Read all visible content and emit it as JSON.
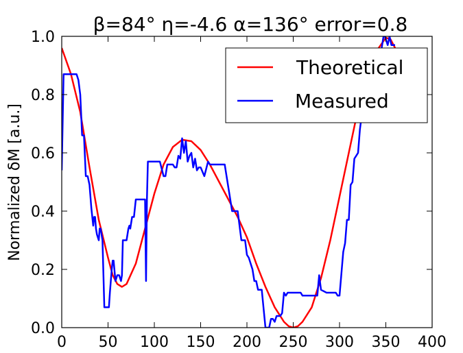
{
  "chart_data": {
    "type": "line",
    "title": "β=84° η=-4.6 α=136° error=0.8",
    "xlabel": "",
    "ylabel": "Normalized δM [a.u.]",
    "xlim": [
      0,
      400
    ],
    "ylim": [
      0.0,
      1.0
    ],
    "xticks": [
      "0",
      "50",
      "100",
      "150",
      "200",
      "250",
      "300",
      "350",
      "400"
    ],
    "yticks": [
      "0.0",
      "0.2",
      "0.4",
      "0.6",
      "0.8",
      "1.0"
    ],
    "legend_position": "top-right",
    "series": [
      {
        "name": "Theoretical",
        "color": "#ff0000",
        "x": [
          0,
          10,
          20,
          30,
          40,
          50,
          55,
          60,
          65,
          70,
          80,
          90,
          100,
          110,
          120,
          130,
          140,
          150,
          160,
          170,
          180,
          190,
          200,
          210,
          220,
          230,
          240,
          245,
          250,
          255,
          260,
          270,
          280,
          290,
          300,
          310,
          320,
          330,
          340,
          350,
          355,
          360
        ],
        "y": [
          0.96,
          0.87,
          0.74,
          0.55,
          0.37,
          0.24,
          0.18,
          0.15,
          0.14,
          0.15,
          0.22,
          0.34,
          0.46,
          0.56,
          0.62,
          0.645,
          0.64,
          0.61,
          0.56,
          0.5,
          0.44,
          0.38,
          0.31,
          0.22,
          0.14,
          0.07,
          0.02,
          0.005,
          0.0,
          0.005,
          0.02,
          0.07,
          0.17,
          0.3,
          0.45,
          0.6,
          0.75,
          0.86,
          0.95,
          0.995,
          0.99,
          0.96
        ]
      },
      {
        "name": "Measured",
        "color": "#0000ff",
        "x": [
          0,
          2,
          4,
          8,
          12,
          16,
          18,
          20,
          22,
          24,
          26,
          28,
          30,
          32,
          34,
          35,
          36,
          37,
          38,
          40,
          41,
          42,
          44,
          46,
          48,
          49,
          50,
          51,
          52,
          54,
          55,
          56,
          58,
          60,
          62,
          64,
          65,
          66,
          68,
          70,
          72,
          73,
          74,
          76,
          78,
          80,
          84,
          88,
          90,
          91,
          92,
          93,
          94,
          96,
          100,
          106,
          110,
          112,
          114,
          116,
          118,
          120,
          122,
          124,
          126,
          128,
          130,
          132,
          134,
          136,
          138,
          140,
          142,
          144,
          146,
          148,
          150,
          154,
          158,
          160,
          162,
          164,
          166,
          170,
          176,
          180,
          184,
          186,
          188,
          190,
          194,
          198,
          200,
          202,
          206,
          208,
          210,
          212,
          216,
          220,
          222,
          224,
          226,
          228,
          230,
          232,
          234,
          236,
          238,
          240,
          242,
          244,
          246,
          250,
          254,
          256,
          258,
          260,
          266,
          270,
          272,
          274,
          276,
          278,
          280,
          286,
          292,
          296,
          298,
          300,
          304,
          306,
          308,
          310,
          312,
          314,
          316,
          318,
          320,
          322,
          324,
          326,
          328,
          330,
          332,
          336,
          340,
          342,
          344,
          346,
          348,
          350,
          352,
          354,
          356,
          358,
          360
        ],
        "y": [
          0.54,
          0.87,
          0.87,
          0.87,
          0.87,
          0.87,
          0.85,
          0.8,
          0.66,
          0.66,
          0.52,
          0.52,
          0.49,
          0.41,
          0.35,
          0.38,
          0.38,
          0.34,
          0.32,
          0.3,
          0.34,
          0.34,
          0.3,
          0.07,
          0.07,
          0.07,
          0.07,
          0.07,
          0.12,
          0.2,
          0.23,
          0.23,
          0.16,
          0.18,
          0.18,
          0.16,
          0.18,
          0.3,
          0.3,
          0.3,
          0.34,
          0.35,
          0.34,
          0.38,
          0.38,
          0.44,
          0.44,
          0.44,
          0.44,
          0.16,
          0.44,
          0.57,
          0.57,
          0.57,
          0.57,
          0.57,
          0.52,
          0.52,
          0.56,
          0.56,
          0.56,
          0.56,
          0.55,
          0.55,
          0.59,
          0.58,
          0.65,
          0.6,
          0.64,
          0.57,
          0.59,
          0.6,
          0.55,
          0.58,
          0.54,
          0.55,
          0.55,
          0.52,
          0.57,
          0.56,
          0.56,
          0.56,
          0.56,
          0.56,
          0.56,
          0.48,
          0.4,
          0.4,
          0.4,
          0.4,
          0.3,
          0.3,
          0.25,
          0.24,
          0.2,
          0.16,
          0.16,
          0.13,
          0.13,
          0.0,
          0.0,
          0.0,
          0.03,
          0.03,
          0.02,
          0.04,
          0.04,
          0.04,
          0.05,
          0.12,
          0.11,
          0.12,
          0.12,
          0.12,
          0.12,
          0.12,
          0.12,
          0.11,
          0.11,
          0.11,
          0.11,
          0.11,
          0.11,
          0.18,
          0.13,
          0.12,
          0.12,
          0.12,
          0.11,
          0.11,
          0.26,
          0.29,
          0.37,
          0.37,
          0.49,
          0.5,
          0.58,
          0.59,
          0.6,
          0.68,
          0.73,
          0.76,
          0.76,
          0.76,
          0.88,
          0.88,
          0.89,
          0.9,
          0.93,
          0.97,
          1.01,
          0.99,
          0.97,
          1.0,
          0.97,
          0.97,
          0.97
        ]
      }
    ]
  }
}
